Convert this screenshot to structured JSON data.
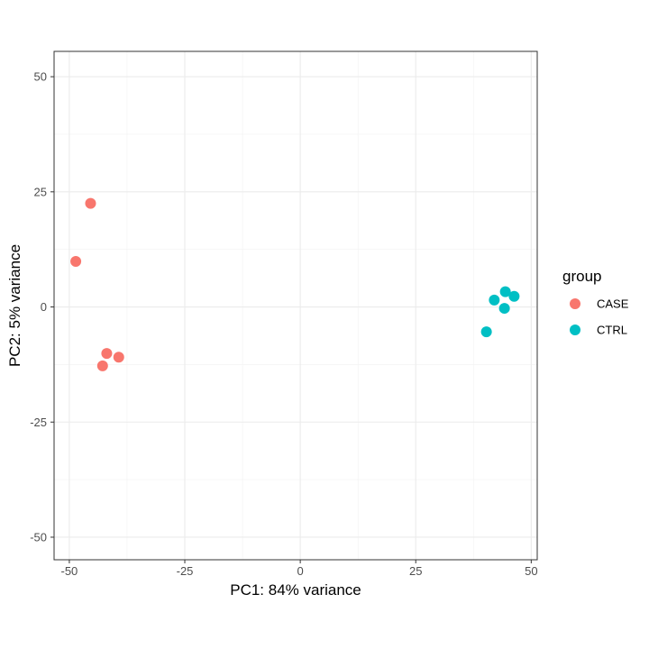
{
  "chart_data": {
    "type": "scatter",
    "title": "",
    "xlabel": "PC1: 84% variance",
    "ylabel": "PC2: 5% variance",
    "xlim": [
      -53.3,
      51.3
    ],
    "ylim": [
      -54.9,
      55.5
    ],
    "x_ticks": [
      -50,
      -25,
      0,
      25,
      50
    ],
    "y_ticks": [
      -50,
      -25,
      0,
      25,
      50
    ],
    "x_tick_labels": [
      "-50",
      "-25",
      "0",
      "25",
      "50"
    ],
    "y_tick_labels": [
      "-50",
      "-25",
      "0",
      "25",
      "50"
    ],
    "grid": true,
    "legend": {
      "title": "group",
      "position": "right"
    },
    "series": [
      {
        "name": "CASE",
        "color": "#F8766D",
        "points": [
          {
            "x": -45.4,
            "y": 22.5
          },
          {
            "x": -48.6,
            "y": 9.9
          },
          {
            "x": -41.9,
            "y": -10.1
          },
          {
            "x": -39.3,
            "y": -10.9
          },
          {
            "x": -42.8,
            "y": -12.8
          }
        ]
      },
      {
        "name": "CTRL",
        "color": "#00BFC4",
        "points": [
          {
            "x": 44.4,
            "y": 3.3
          },
          {
            "x": 46.3,
            "y": 2.3
          },
          {
            "x": 42.0,
            "y": 1.5
          },
          {
            "x": 44.2,
            "y": -0.3
          },
          {
            "x": 40.3,
            "y": -5.4
          }
        ]
      }
    ]
  }
}
